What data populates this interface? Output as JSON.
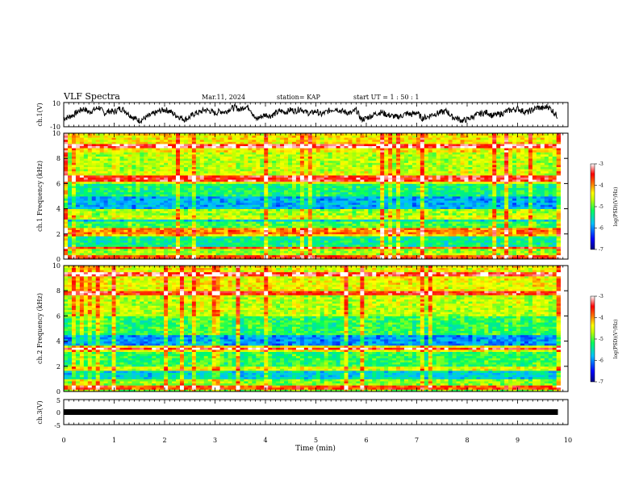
{
  "header": {
    "title": "VLF Spectra",
    "date": "Mar.11, 2024",
    "station": "station= KAP",
    "start": "start  UT =   1 : 50 : 1"
  },
  "chart_data": [
    {
      "type": "line",
      "panel": "ch1-waveform",
      "ylabel": "ch.1(V)",
      "ylim": [
        -10,
        10
      ],
      "yticks": [
        "10",
        "-10"
      ],
      "xlim": [
        0,
        10
      ],
      "series": [
        {
          "x": [
            0,
            0.1,
            0.2,
            0.3,
            0.4,
            0.5,
            0.6,
            0.7,
            0.8,
            0.9,
            1.0,
            1.1,
            1.2,
            1.3,
            1.4,
            1.5,
            1.6,
            1.7,
            1.8,
            1.9,
            2.0,
            2.1,
            2.2,
            2.3,
            2.4,
            2.5,
            2.6,
            2.7,
            2.8,
            2.9,
            3.0,
            3.1,
            3.2,
            3.3,
            3.4,
            3.5,
            3.6,
            3.7,
            3.8,
            3.9,
            4.0,
            4.1,
            4.2,
            4.3,
            4.4,
            4.5,
            4.6,
            4.7,
            4.8,
            4.9,
            5.0,
            5.1,
            5.2,
            5.3,
            5.4,
            5.5,
            5.6,
            5.7,
            5.8,
            5.9,
            6.0,
            6.1,
            6.2,
            6.3,
            6.4,
            6.5,
            6.6,
            6.7,
            6.8,
            6.9,
            7.0,
            7.1,
            7.2,
            7.3,
            7.4,
            7.5,
            7.6,
            7.7,
            7.8,
            7.9,
            8.0,
            8.1,
            8.2,
            8.3,
            8.4,
            8.5,
            8.6,
            8.7,
            8.8,
            8.9,
            9.0,
            9.1,
            9.2,
            9.3,
            9.4,
            9.5,
            9.6,
            9.7,
            9.8
          ],
          "values": [
            -3,
            -2,
            0,
            3,
            5,
            2,
            4,
            6,
            1,
            3,
            2,
            5,
            4,
            0,
            -3,
            -5,
            -3,
            -1,
            1,
            3,
            4,
            3,
            0,
            -2,
            -4,
            -2,
            1,
            2,
            4,
            3,
            1,
            3,
            2,
            5,
            6,
            4,
            7,
            5,
            -4,
            -2,
            0,
            -1,
            1,
            3,
            2,
            4,
            3,
            5,
            2,
            1,
            3,
            0,
            2,
            4,
            5,
            3,
            2,
            1,
            4,
            -4,
            -3,
            -1,
            1,
            2,
            0,
            -1,
            -2,
            -1,
            1,
            0,
            2,
            -3,
            -2,
            0,
            1,
            2,
            3,
            -2,
            -3,
            -5,
            -4,
            -2,
            0,
            1,
            2,
            -1,
            0,
            1,
            3,
            4,
            5,
            3,
            2,
            4,
            6,
            5,
            7,
            3,
            -2
          ]
        }
      ]
    },
    {
      "type": "heatmap",
      "panel": "ch1-spectrogram",
      "ylabel": "ch.1 Frequency (kHz)",
      "ylim": [
        0,
        10
      ],
      "yticks": [
        "0",
        "2",
        "4",
        "6",
        "8",
        "10"
      ],
      "xlim": [
        0,
        10
      ],
      "colorbar": {
        "label": "log(PSD)(V²/Hz)",
        "range": [
          -7,
          -3
        ],
        "ticks": [
          "-3",
          "-4",
          "-5",
          "-6",
          "-7"
        ],
        "colors": [
          "#000080",
          "#0000ff",
          "#00c0ff",
          "#00ff60",
          "#c0ff00",
          "#ffff00",
          "#ff8000",
          "#ff0000",
          "#ffffff"
        ]
      },
      "bands": [
        {
          "f": [
            0.0,
            1.0
          ],
          "level": -4.9
        },
        {
          "f": [
            1.0,
            2.0
          ],
          "level": -5.5
        },
        {
          "f": [
            2.0,
            3.0
          ],
          "level": -5.2
        },
        {
          "f": [
            3.0,
            3.5
          ],
          "level": -5.8
        },
        {
          "f": [
            3.5,
            4.0
          ],
          "level": -4.9
        },
        {
          "f": [
            4.0,
            5.0
          ],
          "level": -6.0
        },
        {
          "f": [
            5.0,
            6.0
          ],
          "level": -5.4
        },
        {
          "f": [
            6.0,
            7.0
          ],
          "level": -4.7
        },
        {
          "f": [
            7.0,
            8.5
          ],
          "level": -4.8
        },
        {
          "f": [
            8.5,
            10.0
          ],
          "level": -4.5
        }
      ],
      "lines_khz": [
        0.2,
        0.9,
        2.0,
        2.3,
        3.3,
        6.3,
        6.6,
        9.0
      ]
    },
    {
      "type": "heatmap",
      "panel": "ch2-spectrogram",
      "ylabel": "ch.2 Frequency (kHz)",
      "ylim": [
        0,
        10
      ],
      "yticks": [
        "0",
        "2",
        "4",
        "6",
        "8",
        "10"
      ],
      "xlim": [
        0,
        10
      ],
      "colorbar": {
        "label": "log(PSD)(V²/Hz)",
        "range": [
          -7,
          -3
        ],
        "ticks": [
          "-3",
          "-4",
          "-5",
          "-6",
          "-7"
        ],
        "colors": [
          "#000080",
          "#0000ff",
          "#00c0ff",
          "#00ff60",
          "#c0ff00",
          "#ffff00",
          "#ff8000",
          "#ff0000",
          "#ffffff"
        ]
      },
      "bands": [
        {
          "f": [
            0.0,
            1.0
          ],
          "level": -5.0
        },
        {
          "f": [
            1.0,
            2.0
          ],
          "level": -5.8
        },
        {
          "f": [
            2.0,
            3.2
          ],
          "level": -5.3
        },
        {
          "f": [
            3.2,
            3.6
          ],
          "level": -4.6
        },
        {
          "f": [
            3.6,
            4.5
          ],
          "level": -6.1
        },
        {
          "f": [
            4.5,
            6.0
          ],
          "level": -5.3
        },
        {
          "f": [
            6.0,
            8.0
          ],
          "level": -4.8
        },
        {
          "f": [
            8.0,
            10.0
          ],
          "level": -4.6
        }
      ],
      "lines_khz": [
        0.3,
        1.8,
        3.4,
        7.8,
        9.3
      ]
    },
    {
      "type": "line",
      "panel": "ch3-waveform",
      "ylabel": "ch.3(V)",
      "ylim": [
        -5,
        5
      ],
      "yticks": [
        "5",
        "0",
        "-5"
      ],
      "xlim": [
        0,
        10
      ],
      "series": [
        {
          "x": [
            0,
            9.8
          ],
          "values": [
            0,
            0
          ]
        }
      ]
    }
  ],
  "xaxis": {
    "label": "Time  (min)",
    "ticks": [
      "0",
      "1",
      "2",
      "3",
      "4",
      "5",
      "6",
      "7",
      "8",
      "9",
      "10"
    ]
  }
}
